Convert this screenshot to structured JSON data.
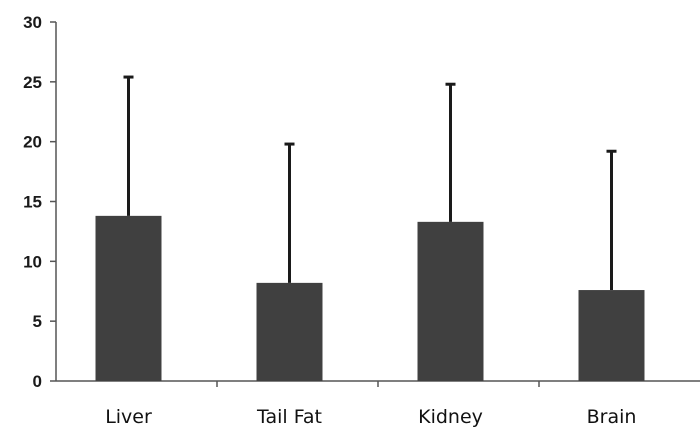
{
  "chart_data": {
    "type": "bar",
    "categories": [
      "Liver",
      "Tail Fat",
      "Kidney",
      "Brain"
    ],
    "values": [
      13.8,
      8.2,
      13.3,
      7.6
    ],
    "error_upper": [
      11.6,
      11.6,
      11.5,
      11.6
    ],
    "ylim": [
      0,
      30
    ],
    "yticks": [
      "0",
      "5",
      "10",
      "15",
      "20",
      "25",
      "30"
    ],
    "title": "",
    "xlabel": "",
    "ylabel": "",
    "grid": false,
    "colors": {
      "bar": "#404040",
      "axis": "#555555"
    }
  }
}
